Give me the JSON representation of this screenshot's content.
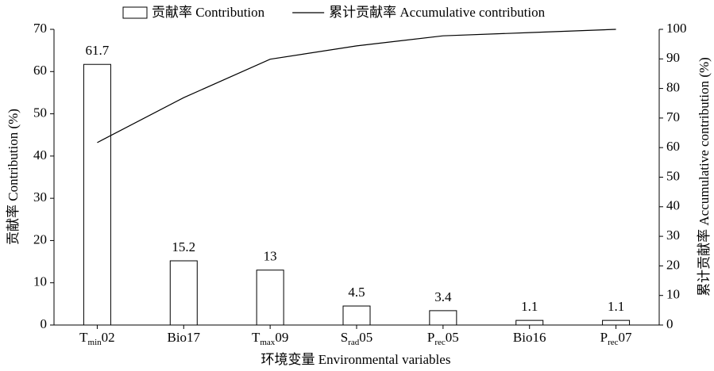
{
  "chart_data": {
    "type": "bar_line",
    "categories": [
      "Tmin02",
      "Bio17",
      "Tmax09",
      "Srad05",
      "Prec05",
      "Bio16",
      "Prec07"
    ],
    "x_label": "环境变量 Environmental variables",
    "y_label": "贡献率 Contribution (%)",
    "y2_label": "累计贡献率 Accumulative contribution (%)",
    "ylim": [
      0,
      70
    ],
    "yticks": [
      0,
      10,
      20,
      30,
      40,
      50,
      60,
      70
    ],
    "y2lim": [
      0,
      100
    ],
    "y2ticks": [
      0,
      10,
      20,
      30,
      40,
      50,
      60,
      70,
      80,
      90,
      100
    ],
    "series": [
      {
        "name": "贡献率 Contribution",
        "type": "bar",
        "color": "#ffffff",
        "values": [
          61.7,
          15.2,
          13,
          4.5,
          3.4,
          1.1,
          1.1
        ]
      },
      {
        "name": "累计贡献率 Accumulative contribution",
        "type": "line",
        "axis": "y2",
        "color": "#000000",
        "values": [
          61.7,
          76.9,
          89.9,
          94.4,
          97.8,
          98.9,
          100
        ]
      }
    ],
    "legend": "top",
    "grid": false
  }
}
